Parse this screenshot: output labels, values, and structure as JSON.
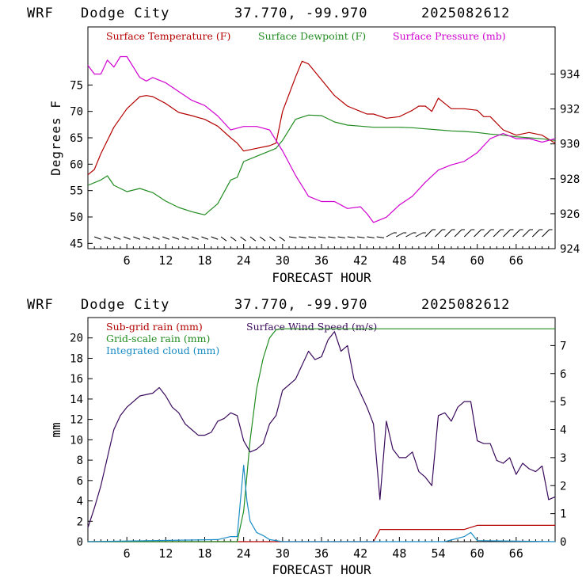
{
  "chart_data": [
    {
      "type": "line",
      "model": "WRF",
      "location": "Dodge City",
      "coords": "37.770, -99.970",
      "run": "2025082612",
      "xlabel": "FORECAST HOUR",
      "ylabel": "Degrees F",
      "xlim": [
        0,
        72
      ],
      "ylim": [
        44,
        86
      ],
      "y2lim": [
        924,
        936.7
      ],
      "xticks": [
        6,
        12,
        18,
        24,
        30,
        36,
        42,
        48,
        54,
        60,
        66
      ],
      "xtick_labels": [
        "6",
        "12",
        "18",
        "24",
        "30",
        "36",
        "42",
        "48",
        "54",
        "60",
        "66"
      ],
      "yticks": [
        45,
        50,
        55,
        60,
        65,
        70,
        75
      ],
      "ytick_labels": [
        "45",
        "50",
        "55",
        "60",
        "65",
        "70",
        "75"
      ],
      "y2ticks": [
        924,
        926,
        928,
        930,
        932,
        934
      ],
      "y2tick_labels": [
        "924",
        "926",
        "928",
        "930",
        "932",
        "934"
      ],
      "grid": false,
      "legend": "top",
      "series": [
        {
          "name": "Surface Temperature (F)",
          "color": "#b40000",
          "axis": "left",
          "x": [
            0,
            1,
            2,
            4,
            6,
            8,
            9,
            10,
            12,
            14,
            16,
            18,
            20,
            22,
            23,
            24,
            26,
            28,
            29,
            30,
            32,
            33,
            34,
            36,
            38,
            40,
            42,
            43,
            44,
            46,
            48,
            50,
            51,
            52,
            53,
            54,
            55,
            56,
            58,
            60,
            61,
            62,
            64,
            66,
            68,
            70,
            72
          ],
          "y": [
            58,
            59,
            62,
            67,
            70.5,
            72.8,
            73,
            72.8,
            71.5,
            69.8,
            69.2,
            68.5,
            67.2,
            65,
            64,
            62.5,
            63,
            63.5,
            64,
            70,
            76.5,
            79.5,
            79,
            76,
            73,
            71,
            70,
            69.5,
            69.5,
            68.7,
            69,
            70.2,
            71,
            71,
            70,
            72.5,
            71.5,
            70.5,
            70.5,
            70.2,
            69,
            69,
            66.5,
            65.5,
            66,
            65.5,
            64
          ]
        },
        {
          "name": "Surface Dewpoint (F)",
          "color": "#208c20",
          "axis": "left",
          "x": [
            0,
            2,
            3,
            4,
            6,
            8,
            10,
            12,
            14,
            16,
            18,
            20,
            22,
            23,
            24,
            26,
            28,
            29,
            30,
            32,
            34,
            36,
            38,
            40,
            42,
            44,
            46,
            48,
            50,
            52,
            54,
            56,
            58,
            60,
            62,
            64,
            66,
            68,
            70,
            72
          ],
          "y": [
            56,
            57,
            57.8,
            56,
            54.8,
            55.4,
            54.6,
            53,
            51.8,
            51,
            50.4,
            52.5,
            57,
            57.5,
            60.5,
            61.5,
            62.5,
            63,
            64.5,
            68.5,
            69.3,
            69.2,
            68,
            67.4,
            67.2,
            67,
            67,
            67,
            66.9,
            66.7,
            66.5,
            66.3,
            66.2,
            66,
            65.7,
            65.5,
            65.2,
            65,
            64.8,
            64.5
          ]
        },
        {
          "name": "Surface Pressure (mb)",
          "color": "#d000d0",
          "axis": "right",
          "x": [
            0,
            1,
            2,
            3,
            4,
            5,
            6,
            8,
            9,
            10,
            12,
            14,
            16,
            18,
            20,
            22,
            24,
            26,
            28,
            30,
            32,
            34,
            36,
            38,
            40,
            42,
            43,
            44,
            46,
            48,
            50,
            52,
            54,
            56,
            58,
            60,
            62,
            64,
            66,
            68,
            70,
            72
          ],
          "y": [
            934.5,
            934,
            934,
            934.8,
            934.4,
            935,
            935,
            933.8,
            933.6,
            933.8,
            933.5,
            933,
            932.5,
            932.2,
            931.6,
            930.8,
            931,
            931,
            930.8,
            929.6,
            928.2,
            927,
            926.7,
            926.7,
            926.3,
            926.4,
            926,
            925.5,
            925.8,
            926.5,
            927,
            927.8,
            928.5,
            928.8,
            929,
            929.5,
            930.3,
            930.6,
            930.3,
            930.3,
            930.1,
            930.3
          ]
        }
      ],
      "wind_barbs": "yes"
    },
    {
      "type": "line",
      "model": "WRF",
      "location": "Dodge City",
      "coords": "37.770, -99.970",
      "run": "2025082612",
      "xlabel": "FORECAST HOUR",
      "ylabel": "mm",
      "xlim": [
        0,
        72
      ],
      "ylim": [
        0,
        22
      ],
      "y2lim": [
        0,
        8
      ],
      "xticks": [
        6,
        12,
        18,
        24,
        30,
        36,
        42,
        48,
        54,
        60,
        66
      ],
      "xtick_labels": [
        "6",
        "12",
        "18",
        "24",
        "30",
        "36",
        "42",
        "48",
        "54",
        "60",
        "66"
      ],
      "yticks": [
        0,
        2,
        4,
        6,
        8,
        10,
        12,
        14,
        16,
        18,
        20
      ],
      "ytick_labels": [
        "0",
        "2",
        "4",
        "6",
        "8",
        "10",
        "12",
        "14",
        "16",
        "18",
        "20"
      ],
      "y2ticks": [
        0,
        1,
        2,
        3,
        4,
        5,
        6,
        7
      ],
      "y2tick_labels": [
        "0",
        "1",
        "2",
        "3",
        "4",
        "5",
        "6",
        "7"
      ],
      "grid": false,
      "legend": "top",
      "series": [
        {
          "name": "Sub-grid rain (mm)",
          "color": "#b40000",
          "axis": "left",
          "x": [
            0,
            44,
            45,
            58,
            60,
            72
          ],
          "y": [
            0,
            0,
            1.2,
            1.2,
            1.6,
            1.6
          ]
        },
        {
          "name": "Grid-scale rain (mm)",
          "color": "#208c20",
          "axis": "left",
          "x": [
            0,
            23,
            24,
            25,
            26,
            27,
            28,
            29,
            30,
            32,
            34,
            40,
            72
          ],
          "y": [
            0,
            0,
            3,
            10,
            15,
            18,
            20,
            20.8,
            20.9,
            20.9,
            20.9,
            20.9,
            20.9
          ]
        },
        {
          "name": "Integrated cloud (mm)",
          "color": "#1a8cc4",
          "axis": "left",
          "x": [
            0,
            20,
            22,
            23,
            23.5,
            24,
            24.5,
            25,
            26,
            27,
            28,
            30,
            40,
            55,
            58,
            59,
            60,
            72
          ],
          "y": [
            0,
            0.2,
            0.5,
            0.5,
            4,
            7.5,
            4,
            2,
            0.9,
            0.6,
            0.2,
            0,
            0,
            0,
            0.5,
            0.9,
            0.1,
            0
          ]
        },
        {
          "name": "Surface Wind Speed (m/s)",
          "color": "#3a0a5c",
          "axis": "right",
          "x": [
            0,
            1,
            2,
            3,
            4,
            5,
            6,
            8,
            10,
            11,
            12,
            13,
            14,
            15,
            16,
            17,
            18,
            19,
            20,
            21,
            22,
            23,
            24,
            25,
            26,
            27,
            28,
            29,
            30,
            32,
            34,
            35,
            36,
            37,
            38,
            39,
            40,
            41,
            42,
            43,
            44,
            45,
            46,
            47,
            48,
            49,
            50,
            51,
            52,
            53,
            54,
            55,
            56,
            57,
            58,
            59,
            60,
            61,
            62,
            63,
            64,
            65,
            66,
            67,
            68,
            69,
            70,
            71,
            72
          ],
          "y": [
            0.5,
            1.2,
            2,
            3,
            4,
            4.5,
            4.8,
            5.2,
            5.3,
            5.5,
            5.2,
            4.8,
            4.6,
            4.2,
            4,
            3.8,
            3.8,
            3.9,
            4.3,
            4.4,
            4.6,
            4.5,
            3.6,
            3.2,
            3.3,
            3.5,
            4.2,
            4.5,
            5.4,
            5.8,
            6.8,
            6.5,
            6.6,
            7.2,
            7.5,
            6.8,
            7,
            5.8,
            5.3,
            4.8,
            4.2,
            1.5,
            4.3,
            3.3,
            3,
            3,
            3.2,
            2.5,
            2.3,
            2,
            4.5,
            4.6,
            4.3,
            4.8,
            5,
            5,
            3.6,
            3.5,
            3.5,
            2.9,
            2.8,
            3,
            2.4,
            2.8,
            2.6,
            2.5,
            2.7,
            1.5,
            1.6
          ]
        }
      ]
    }
  ]
}
